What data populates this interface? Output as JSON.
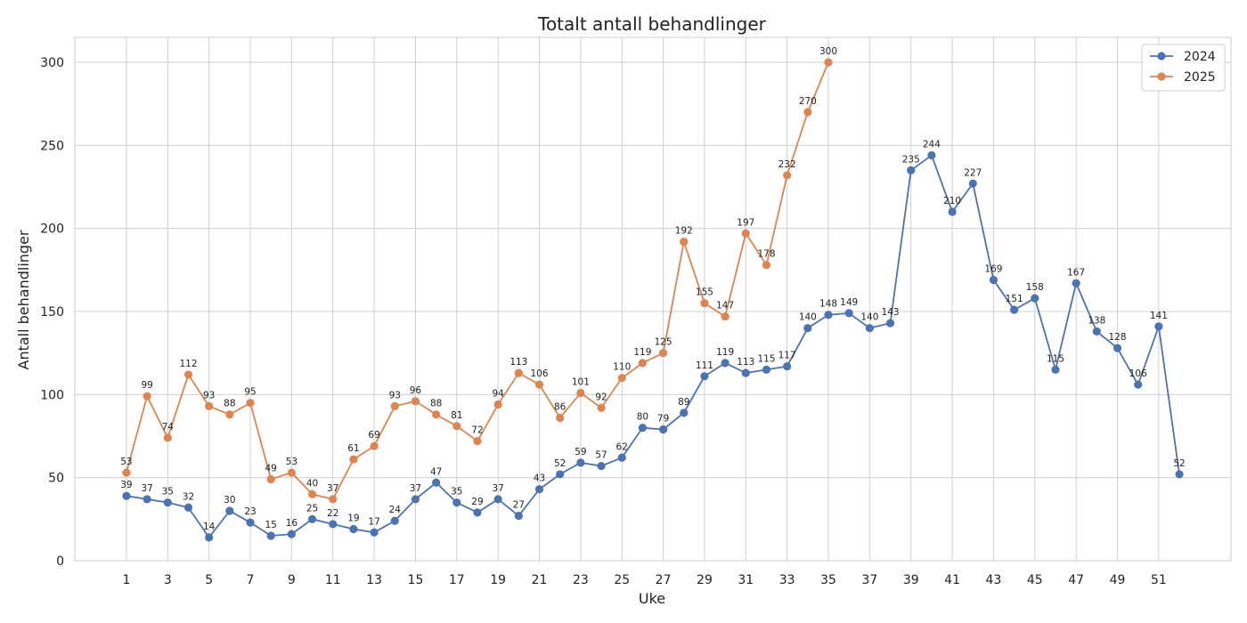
{
  "chart_data": {
    "type": "line",
    "title": "Totalt antall behandlinger",
    "xlabel": "Uke",
    "ylabel": "Antall behandlinger",
    "xlim": [
      -1.5,
      54.5
    ],
    "ylim": [
      0,
      315
    ],
    "x_ticks": [
      1,
      3,
      5,
      7,
      9,
      11,
      13,
      15,
      17,
      19,
      21,
      23,
      25,
      27,
      29,
      31,
      33,
      35,
      37,
      39,
      41,
      43,
      45,
      47,
      49,
      51
    ],
    "y_ticks": [
      0,
      50,
      100,
      150,
      200,
      250,
      300
    ],
    "grid": true,
    "legend_position": "top-right",
    "series": [
      {
        "name": "2024",
        "color": "#4c72b0",
        "x": [
          1,
          2,
          3,
          4,
          5,
          6,
          7,
          8,
          9,
          10,
          11,
          12,
          13,
          14,
          15,
          16,
          17,
          18,
          19,
          20,
          21,
          22,
          23,
          24,
          25,
          26,
          27,
          28,
          29,
          30,
          31,
          32,
          33,
          34,
          35,
          36,
          37,
          38,
          39,
          40,
          41,
          42,
          43,
          44,
          45,
          46,
          47,
          48,
          49,
          50,
          51,
          52
        ],
        "values": [
          39,
          37,
          35,
          32,
          14,
          30,
          23,
          15,
          16,
          25,
          22,
          19,
          17,
          24,
          37,
          47,
          35,
          29,
          37,
          27,
          43,
          52,
          59,
          57,
          62,
          80,
          79,
          89,
          111,
          119,
          113,
          115,
          117,
          140,
          148,
          149,
          140,
          143,
          235,
          244,
          210,
          227,
          169,
          151,
          158,
          115,
          167,
          138,
          128,
          106,
          141,
          52
        ]
      },
      {
        "name": "2025",
        "color": "#dd8452",
        "x": [
          1,
          2,
          3,
          4,
          5,
          6,
          7,
          8,
          9,
          10,
          11,
          12,
          13,
          14,
          15,
          16,
          17,
          18,
          19,
          20,
          21,
          22,
          23,
          24,
          25,
          26,
          27,
          28,
          29,
          30,
          31,
          32,
          33,
          34,
          35
        ],
        "values": [
          53,
          99,
          74,
          112,
          93,
          88,
          95,
          49,
          53,
          40,
          37,
          61,
          69,
          93,
          96,
          88,
          81,
          72,
          94,
          113,
          106,
          86,
          101,
          92,
          110,
          119,
          125,
          192,
          155,
          147,
          197,
          178,
          232,
          270,
          300
        ]
      }
    ]
  }
}
